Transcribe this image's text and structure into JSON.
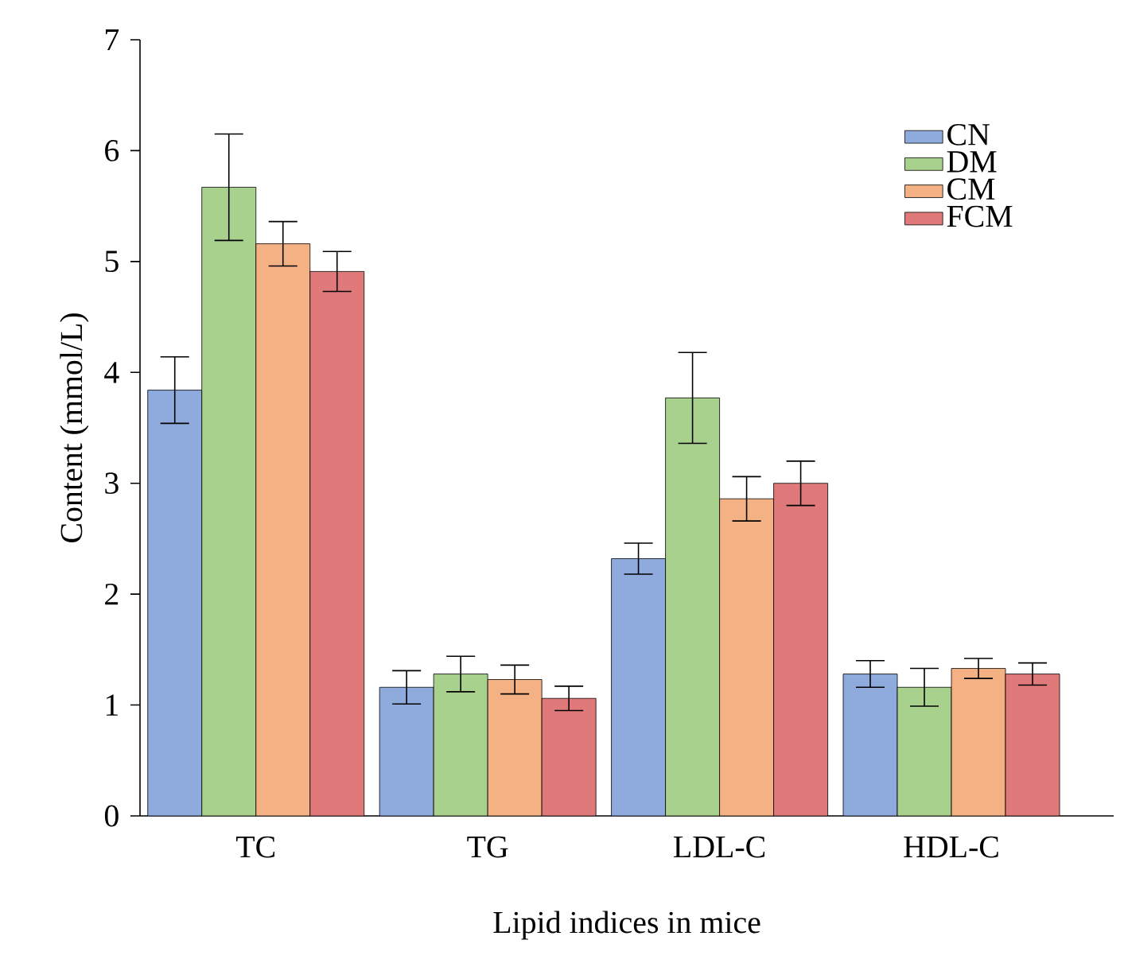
{
  "chart_data": {
    "type": "bar",
    "xlabel": "Lipid indices in mice",
    "ylabel": "Content (mmol/L)",
    "categories": [
      "TC",
      "TG",
      "LDL-C",
      "HDL-C"
    ],
    "series": [
      {
        "name": "CN",
        "color": "#8faadc",
        "values": [
          3.84,
          1.16,
          2.32,
          1.28
        ],
        "errors": [
          0.3,
          0.15,
          0.14,
          0.12
        ]
      },
      {
        "name": "DM",
        "color": "#a9d18e",
        "values": [
          5.67,
          1.28,
          3.77,
          1.16
        ],
        "errors": [
          0.48,
          0.16,
          0.41,
          0.17
        ]
      },
      {
        "name": "CM",
        "color": "#f4b183",
        "values": [
          5.16,
          1.23,
          2.86,
          1.33
        ],
        "errors": [
          0.2,
          0.13,
          0.2,
          0.09
        ]
      },
      {
        "name": "FCM",
        "color": "#e07a7a",
        "values": [
          4.91,
          1.06,
          3.0,
          1.28
        ],
        "errors": [
          0.18,
          0.11,
          0.2,
          0.1
        ]
      }
    ],
    "ylim": [
      0,
      7
    ],
    "yticks": [
      0,
      1,
      2,
      3,
      4,
      5,
      6,
      7
    ],
    "grid": false,
    "legend": "top right"
  }
}
